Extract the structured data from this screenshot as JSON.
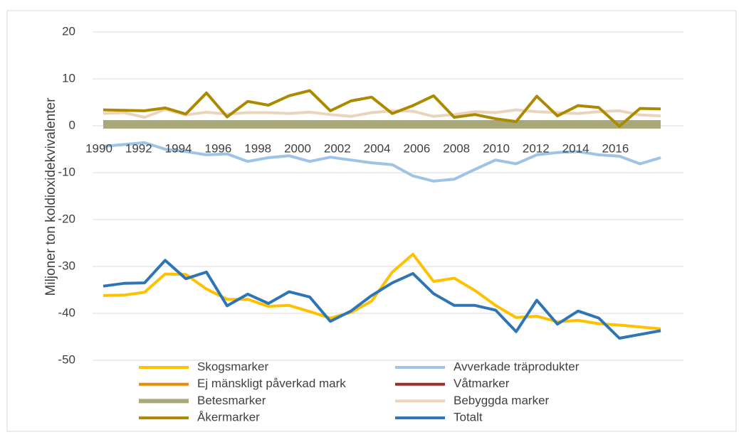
{
  "chart_data": {
    "type": "line",
    "ylabel": "Miljoner ton koldioxidekvivalenter",
    "categories": [
      "1990",
      null,
      "1992",
      null,
      "1994",
      null,
      "1996",
      null,
      "1998",
      null,
      "2000",
      null,
      "2002",
      null,
      "2004",
      null,
      "2006",
      null,
      "2008",
      null,
      "2010",
      null,
      "2012",
      null,
      "2014",
      null,
      "2016",
      null
    ],
    "ylim": [
      -50,
      20
    ],
    "yticks": [
      -50,
      -40,
      -30,
      -20,
      -10,
      0,
      10,
      20
    ],
    "grid": true,
    "legend": "bottom",
    "series": [
      {
        "name": "Skogsmarker",
        "color": "#ffc000",
        "values": [
          -36.2,
          -36.1,
          -35.5,
          -31.6,
          -31.7,
          -34.8,
          -37,
          -37,
          -38.5,
          -38.3,
          -39.6,
          -41,
          -39.8,
          -37.4,
          -31.2,
          -27.4,
          -33.2,
          -32.5,
          -35.1,
          -38.3,
          -40.9,
          -40.6,
          -41.8,
          -41.5,
          -42.2,
          -42.5,
          -42.9,
          -43.3
        ]
      },
      {
        "name": "Avverkade träprodukter",
        "color": "#9dc3e6",
        "values": [
          -4.4,
          -4,
          -3.6,
          -5,
          -5.5,
          -6.2,
          -6,
          -7.6,
          -6.8,
          -6.4,
          -7.6,
          -6.7,
          -7.3,
          -7.9,
          -8.3,
          -10.7,
          -11.8,
          -11.4,
          -9.3,
          -7.3,
          -8.1,
          -6.2,
          -5.7,
          -5.5,
          -6.2,
          -6.5,
          -8.1,
          -6.8
        ]
      },
      {
        "name": "Ej mänskligt påverkad mark",
        "color": "#ed8b00",
        "values": [
          0,
          0,
          0,
          0,
          0,
          0,
          0,
          0,
          0,
          0,
          0,
          0,
          0,
          0,
          0,
          0,
          0,
          0,
          0,
          0,
          0,
          0,
          0,
          0,
          0,
          0,
          0,
          0
        ]
      },
      {
        "name": "Våtmarker",
        "color": "#9e2a2a",
        "values": [
          0,
          0,
          0,
          0,
          0,
          0,
          0,
          0,
          0,
          0,
          0,
          0,
          0,
          0,
          0,
          0,
          0,
          0,
          0,
          0,
          0,
          0,
          0,
          0,
          0,
          0,
          0,
          0
        ]
      },
      {
        "name": "Betesmarker",
        "color": "#a9a878",
        "values": [
          0.3,
          0.3,
          0.3,
          0.3,
          0.3,
          0.3,
          0.3,
          0.3,
          0.3,
          0.3,
          0.3,
          0.3,
          0.3,
          0.3,
          0.3,
          0.3,
          0.3,
          0.3,
          0.3,
          0.3,
          0.3,
          0.3,
          0.3,
          0.3,
          0.3,
          0.3,
          0.3,
          0.3
        ]
      },
      {
        "name": "Bebyggda marker",
        "color": "#ebd4bc",
        "values": [
          2.6,
          2.8,
          1.8,
          3.5,
          2.3,
          2.9,
          2.5,
          2.8,
          2.8,
          2.6,
          2.9,
          2.4,
          2,
          2.8,
          3.2,
          3.1,
          2,
          2.4,
          3,
          2.8,
          3.4,
          3,
          2.8,
          2.6,
          3,
          3.2,
          2.3,
          2.1
        ]
      },
      {
        "name": "Åkermarker",
        "color": "#ab8a00",
        "values": [
          3.4,
          3.3,
          3.2,
          3.8,
          2.5,
          7,
          1.9,
          5.2,
          4.4,
          6.4,
          7.5,
          3.2,
          5.3,
          6.1,
          2.6,
          4.3,
          6.4,
          1.8,
          2.4,
          1.5,
          0.9,
          6.3,
          2.1,
          4.3,
          3.9,
          -0.1,
          3.7,
          3.6
        ]
      },
      {
        "name": "Totalt",
        "color": "#2e75b6",
        "values": [
          -34.2,
          -33.6,
          -33.5,
          -28.7,
          -32.6,
          -31.2,
          -38.4,
          -35.9,
          -37.9,
          -35.4,
          -36.5,
          -41.7,
          -39.5,
          -36.2,
          -33.5,
          -31.5,
          -35.8,
          -38.3,
          -38.3,
          -39.3,
          -43.9,
          -37.2,
          -42.3,
          -39.5,
          -41,
          -45.3,
          -44.5,
          -43.7
        ]
      }
    ]
  }
}
